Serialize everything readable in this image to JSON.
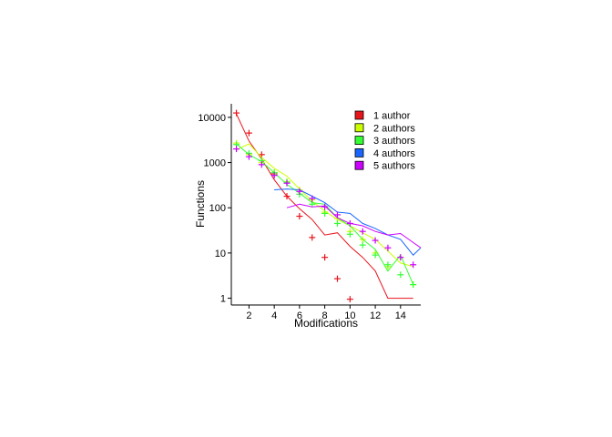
{
  "chart_data": {
    "type": "line",
    "xlabel": "Modifications",
    "ylabel": "Functions",
    "y_scale": "log",
    "xlim": [
      0.6,
      15.6
    ],
    "ylim_log10": [
      -0.15,
      4.3
    ],
    "x_ticks": [
      2,
      4,
      6,
      8,
      10,
      12,
      14
    ],
    "y_ticks": [
      {
        "value": 1,
        "label": "1"
      },
      {
        "value": 10,
        "label": "10"
      },
      {
        "value": 100,
        "label": "100"
      },
      {
        "value": 1000,
        "label": "1000"
      },
      {
        "value": 10000,
        "label": "10000"
      }
    ],
    "legend_position": "top-right",
    "grid": false,
    "series": [
      {
        "name": "1 author",
        "color": "#e8141c",
        "line": [
          [
            1,
            12000
          ],
          [
            2,
            3000
          ],
          [
            3,
            1200
          ],
          [
            4,
            420
          ],
          [
            5,
            180
          ],
          [
            6,
            95
          ],
          [
            7,
            55
          ],
          [
            8,
            25
          ],
          [
            9,
            28
          ],
          [
            10,
            14
          ],
          [
            11,
            8
          ],
          [
            12,
            4
          ],
          [
            13,
            1
          ],
          [
            14,
            1
          ],
          [
            15,
            1
          ]
        ],
        "points": [
          [
            1,
            12500
          ],
          [
            2,
            4500
          ],
          [
            3,
            1500
          ],
          [
            4,
            560
          ],
          [
            5,
            180
          ],
          [
            6,
            65
          ],
          [
            7,
            22
          ],
          [
            8,
            8
          ],
          [
            9,
            2.7
          ],
          [
            10,
            0.95
          ]
        ]
      },
      {
        "name": "2 authors",
        "color": "#ccff00",
        "line": [
          [
            1,
            1900
          ],
          [
            2,
            2600
          ],
          [
            3,
            1300
          ],
          [
            4,
            750
          ],
          [
            5,
            500
          ],
          [
            6,
            260
          ],
          [
            7,
            140
          ],
          [
            8,
            85
          ],
          [
            9,
            55
          ],
          [
            10,
            40
          ],
          [
            11,
            28
          ],
          [
            12,
            20
          ],
          [
            13,
            11
          ],
          [
            14,
            6
          ],
          [
            15,
            5
          ]
        ],
        "points": [
          [
            1,
            2700
          ],
          [
            2,
            1500
          ],
          [
            3,
            1000
          ],
          [
            4,
            600
          ],
          [
            5,
            380
          ],
          [
            6,
            250
          ],
          [
            7,
            150
          ],
          [
            8,
            80
          ],
          [
            9,
            58
          ],
          [
            10,
            30
          ],
          [
            11,
            20
          ],
          [
            12,
            10
          ],
          [
            13,
            5
          ],
          [
            14,
            8
          ],
          [
            15,
            2
          ]
        ]
      },
      {
        "name": "3 authors",
        "color": "#33ff33",
        "line": [
          [
            1,
            2600
          ],
          [
            2,
            1500
          ],
          [
            3,
            1050
          ],
          [
            4,
            600
          ],
          [
            5,
            330
          ],
          [
            6,
            210
          ],
          [
            7,
            130
          ],
          [
            8,
            120
          ],
          [
            9,
            60
          ],
          [
            10,
            40
          ],
          [
            11,
            20
          ],
          [
            12,
            12
          ],
          [
            13,
            4
          ],
          [
            14,
            9
          ],
          [
            15,
            2
          ]
        ],
        "points": [
          [
            1,
            2500
          ],
          [
            2,
            1600
          ],
          [
            3,
            1100
          ],
          [
            4,
            600
          ],
          [
            5,
            370
          ],
          [
            6,
            200
          ],
          [
            7,
            120
          ],
          [
            8,
            75
          ],
          [
            9,
            45
          ],
          [
            10,
            26
          ],
          [
            11,
            15
          ],
          [
            12,
            9
          ],
          [
            13,
            5.5
          ],
          [
            14,
            3.3
          ],
          [
            15,
            2
          ]
        ]
      },
      {
        "name": "4 authors",
        "color": "#1a66ff",
        "line": [
          [
            4,
            250
          ],
          [
            5,
            260
          ],
          [
            6,
            250
          ],
          [
            7,
            180
          ],
          [
            8,
            130
          ],
          [
            9,
            80
          ],
          [
            10,
            75
          ],
          [
            11,
            45
          ],
          [
            12,
            35
          ],
          [
            13,
            25
          ],
          [
            14,
            20
          ],
          [
            15,
            9
          ],
          [
            15.6,
            13
          ]
        ],
        "points": []
      },
      {
        "name": "5 authors",
        "color": "#cc00ff",
        "line": [
          [
            5,
            100
          ],
          [
            6,
            120
          ],
          [
            7,
            105
          ],
          [
            8,
            110
          ],
          [
            9,
            60
          ],
          [
            10,
            45
          ],
          [
            11,
            40
          ],
          [
            12,
            30
          ],
          [
            13,
            25
          ],
          [
            14,
            27
          ],
          [
            15,
            17
          ],
          [
            15.6,
            13
          ]
        ],
        "points": [
          [
            1,
            2000
          ],
          [
            2,
            1350
          ],
          [
            3,
            900
          ],
          [
            4,
            520
          ],
          [
            5,
            350
          ],
          [
            6,
            230
          ],
          [
            7,
            160
          ],
          [
            8,
            105
          ],
          [
            9,
            70
          ],
          [
            10,
            45
          ],
          [
            11,
            30
          ],
          [
            12,
            19
          ],
          [
            13,
            13
          ],
          [
            14,
            8
          ],
          [
            15,
            5.5
          ]
        ]
      }
    ]
  }
}
